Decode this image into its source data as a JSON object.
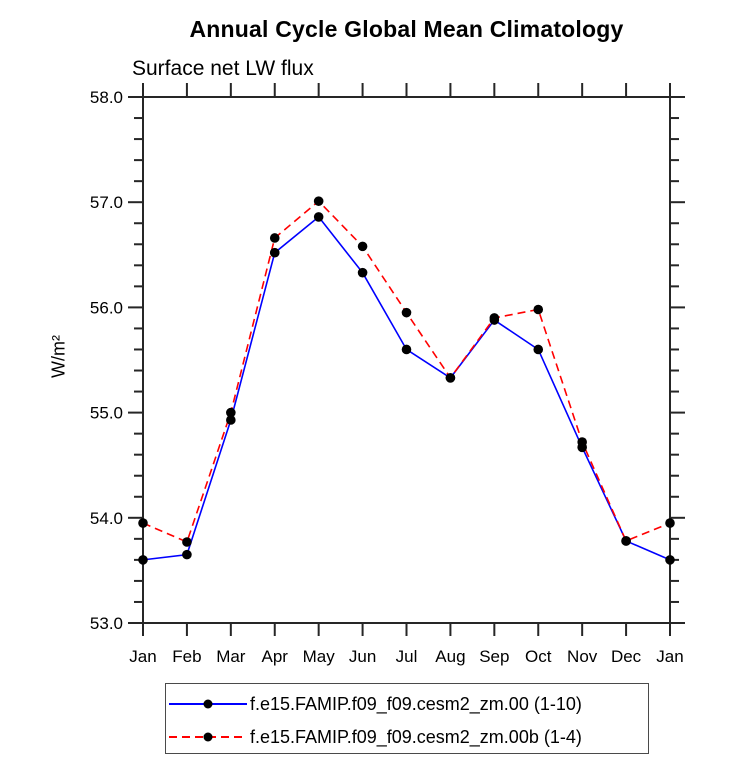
{
  "chart_data": {
    "type": "line",
    "title": "Annual Cycle Global Mean Climatology",
    "subtitle": "Surface net LW flux",
    "ylabel": "W/m²",
    "xlabel": "",
    "x_categories": [
      "Jan",
      "Feb",
      "Mar",
      "Apr",
      "May",
      "Jun",
      "Jul",
      "Aug",
      "Sep",
      "Oct",
      "Nov",
      "Dec",
      "Jan"
    ],
    "ylim": [
      53.0,
      58.0
    ],
    "y_major_ticks": [
      53.0,
      54.0,
      55.0,
      56.0,
      57.0,
      58.0
    ],
    "y_tick_labels": [
      "53.0",
      "54.0",
      "55.0",
      "56.0",
      "57.0",
      "58.0"
    ],
    "y_minor_step": 0.2,
    "grid": false,
    "legend_position": "bottom",
    "marker_color": "#000000",
    "series": [
      {
        "name": "f.e15.FAMIP.f09_f09.cesm2_zm.00 (1-10)",
        "color": "#0000ff",
        "style": "solid",
        "marker": "black-dot",
        "values": [
          53.6,
          53.65,
          54.93,
          56.52,
          56.86,
          56.33,
          55.6,
          55.33,
          55.88,
          55.6,
          54.67,
          53.78,
          53.6
        ]
      },
      {
        "name": "f.e15.FAMIP.f09_f09.cesm2_zm.00b (1-4)",
        "color": "#ff0000",
        "style": "dashed",
        "marker": "black-dot",
        "values": [
          53.95,
          53.77,
          55.0,
          56.66,
          57.01,
          56.58,
          55.95,
          55.33,
          55.9,
          55.98,
          54.72,
          53.78,
          53.95
        ]
      }
    ]
  },
  "colors": {
    "axis": "#262626",
    "text": "#000000",
    "legend_border": "#4a4a4a",
    "background": "#ffffff"
  }
}
